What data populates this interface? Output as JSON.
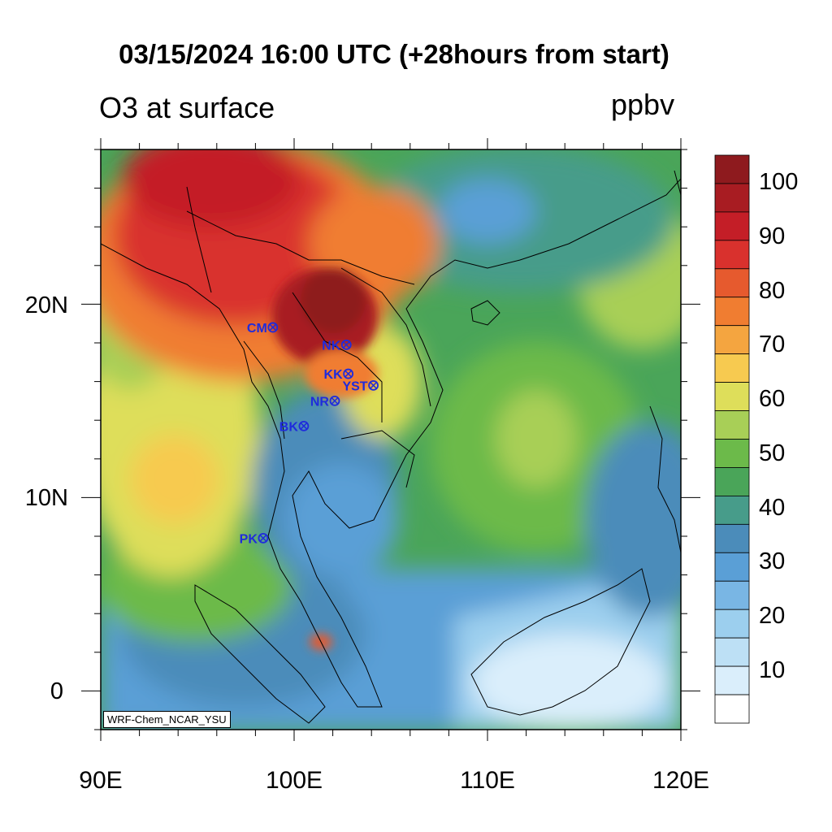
{
  "title": "03/15/2024 16:00 UTC (+28hours from start)",
  "left_label": "O3 at surface",
  "right_label": "ppbv",
  "credit": "WRF-Chem_NCAR_YSU",
  "lat_ticks": [
    "20N",
    "10N",
    "0"
  ],
  "lon_ticks": [
    "90E",
    "100E",
    "110E",
    "120E"
  ],
  "colorbar": {
    "labels": [
      "100",
      "90",
      "80",
      "70",
      "60",
      "50",
      "40",
      "30",
      "20",
      "10"
    ],
    "colors": [
      "#8e1a1e",
      "#a81c22",
      "#c41e27",
      "#d9312d",
      "#e65a2e",
      "#f07d31",
      "#f4a540",
      "#f7ca50",
      "#dede5a",
      "#a8cf57",
      "#6cba4a",
      "#4aa559",
      "#479c8a",
      "#4b8cba",
      "#5a9fd6",
      "#79b6e4",
      "#9ccfee",
      "#bde0f5",
      "#daeefb",
      "#ffffff"
    ]
  },
  "stations": [
    {
      "label": "CM",
      "lon": 98.9,
      "lat": 18.8
    },
    {
      "label": "NK",
      "lon": 102.7,
      "lat": 17.9
    },
    {
      "label": "KK",
      "lon": 102.8,
      "lat": 16.4
    },
    {
      "label": "YST",
      "lon": 104.1,
      "lat": 15.8
    },
    {
      "label": "NR",
      "lon": 102.1,
      "lat": 15.0
    },
    {
      "label": "BK",
      "lon": 100.5,
      "lat": 13.7
    },
    {
      "label": "PK",
      "lon": 98.4,
      "lat": 7.9
    }
  ],
  "station_color": "#1f2bdc"
}
